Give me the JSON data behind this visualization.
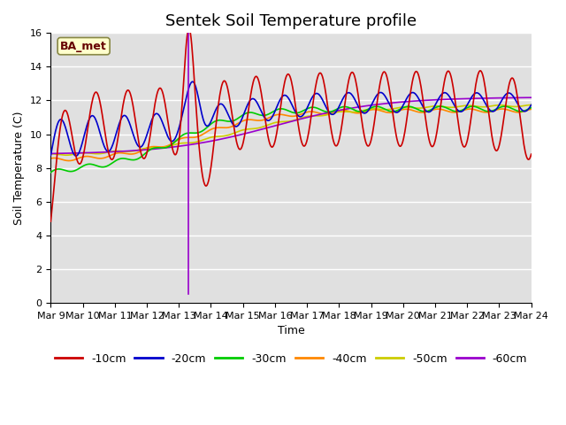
{
  "title": "Sentek Soil Temperature profile",
  "xlabel": "Time",
  "ylabel": "Soil Temperature (C)",
  "ylim": [
    0,
    16
  ],
  "yticks": [
    0,
    2,
    4,
    6,
    8,
    10,
    12,
    14,
    16
  ],
  "x_tick_labels": [
    "Mar 9",
    "Mar 10",
    "Mar 11",
    "Mar 12",
    "Mar 13",
    "Mar 14",
    "Mar 15",
    "Mar 16",
    "Mar 17",
    "Mar 18",
    "Mar 19",
    "Mar 20",
    "Mar 21",
    "Mar 22",
    "Mar 23",
    "Mar 24"
  ],
  "annotation_label": "BA_met",
  "legend_labels": [
    "-10cm",
    "-20cm",
    "-30cm",
    "-40cm",
    "-50cm",
    "-60cm"
  ],
  "colors": {
    "10cm": "#cc0000",
    "20cm": "#0000cc",
    "30cm": "#00cc00",
    "40cm": "#ff8800",
    "50cm": "#cccc00",
    "60cm": "#9900cc"
  },
  "bg_color": "#e0e0e0",
  "grid_color": "#ffffff",
  "title_fontsize": 13,
  "axis_fontsize": 9,
  "tick_fontsize": 8
}
